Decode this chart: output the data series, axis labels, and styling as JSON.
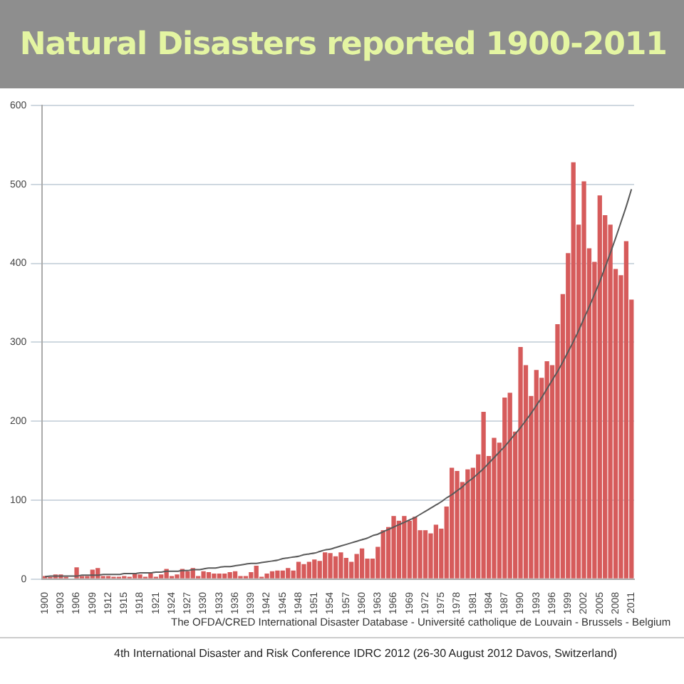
{
  "chart_data": {
    "type": "bar",
    "title": "Natural Disasters reported 1900-2011",
    "categories": [
      "1900",
      null,
      null,
      "1903",
      null,
      null,
      "1906",
      null,
      null,
      "1909",
      null,
      null,
      "1912",
      null,
      null,
      "1915",
      null,
      null,
      "1918",
      null,
      null,
      "1921",
      null,
      null,
      "1924",
      null,
      null,
      "1927",
      null,
      null,
      "1930",
      null,
      null,
      "1933",
      null,
      null,
      "1936",
      null,
      null,
      "1939",
      null,
      null,
      "1942",
      null,
      null,
      "1945",
      null,
      null,
      "1948",
      null,
      null,
      "1951",
      null,
      null,
      "1954",
      null,
      null,
      "1957",
      null,
      null,
      "1960",
      null,
      null,
      "1963",
      null,
      null,
      "1966",
      null,
      null,
      "1969",
      null,
      null,
      "1972",
      null,
      null,
      "1975",
      null,
      null,
      "1978",
      null,
      null,
      "1981",
      null,
      null,
      "1984",
      null,
      null,
      "1987",
      null,
      null,
      "1990",
      null,
      null,
      "1993",
      null,
      null,
      "1996",
      null,
      null,
      "1999",
      null,
      null,
      "2002",
      null,
      null,
      "2005",
      null,
      null,
      "2008",
      null,
      null,
      "2011"
    ],
    "series": [
      {
        "color": "#d65b5b",
        "values": [
          4,
          3,
          6,
          6,
          3,
          1,
          15,
          4,
          4,
          12,
          14,
          4,
          4,
          3,
          3,
          4,
          3,
          7,
          6,
          3,
          7,
          3,
          6,
          13,
          4,
          6,
          13,
          10,
          14,
          4,
          10,
          9,
          7,
          7,
          7,
          9,
          10,
          4,
          4,
          9,
          17,
          3,
          7,
          10,
          11,
          11,
          14,
          11,
          22,
          19,
          22,
          25,
          23,
          34,
          33,
          29,
          34,
          27,
          22,
          32,
          39,
          26,
          26,
          41,
          62,
          66,
          80,
          74,
          80,
          74,
          79,
          62,
          62,
          58,
          69,
          64,
          92,
          141,
          137,
          123,
          139,
          141,
          158,
          212,
          156,
          179,
          173,
          230,
          236,
          187,
          294,
          271,
          232,
          265,
          255,
          276,
          271,
          323,
          361,
          413,
          528,
          449,
          504,
          419,
          402,
          486,
          461,
          449,
          393,
          385,
          428,
          354
        ]
      },
      {
        "type": "line",
        "color": "#5a5a5a",
        "values": [
          3,
          4,
          4,
          4,
          4,
          4,
          4,
          5,
          5,
          5,
          5,
          6,
          6,
          6,
          6,
          7,
          7,
          7,
          8,
          8,
          8,
          9,
          9,
          10,
          10,
          10,
          11,
          11,
          12,
          12,
          13,
          14,
          14,
          15,
          16,
          16,
          17,
          18,
          19,
          20,
          20,
          21,
          22,
          23,
          24,
          26,
          27,
          28,
          29,
          31,
          32,
          33,
          35,
          37,
          38,
          40,
          42,
          44,
          46,
          48,
          50,
          52,
          55,
          57,
          60,
          63,
          66,
          69,
          72,
          75,
          78,
          82,
          86,
          90,
          94,
          98,
          103,
          107,
          112,
          117,
          123,
          128,
          134,
          140,
          147,
          154,
          161,
          168,
          176,
          184,
          192,
          201,
          210,
          220,
          230,
          241,
          252,
          263,
          275,
          288,
          301,
          315,
          330,
          345,
          361,
          377,
          395,
          413,
          432,
          452,
          472,
          494
        ]
      }
    ],
    "marker": "none",
    "ylim": [
      0,
      600
    ],
    "yticks": [
      0,
      100,
      200,
      300,
      400,
      500,
      600
    ],
    "grid": "y",
    "annotations": [
      "The OFDA/CRED International Disaster Database - Université catholique de Louvain - Brussels - Belgium",
      "4th International Disaster and Risk Conference  IDRC 2012 (26-30 August 2012 Davos, Switzerland)"
    ]
  }
}
